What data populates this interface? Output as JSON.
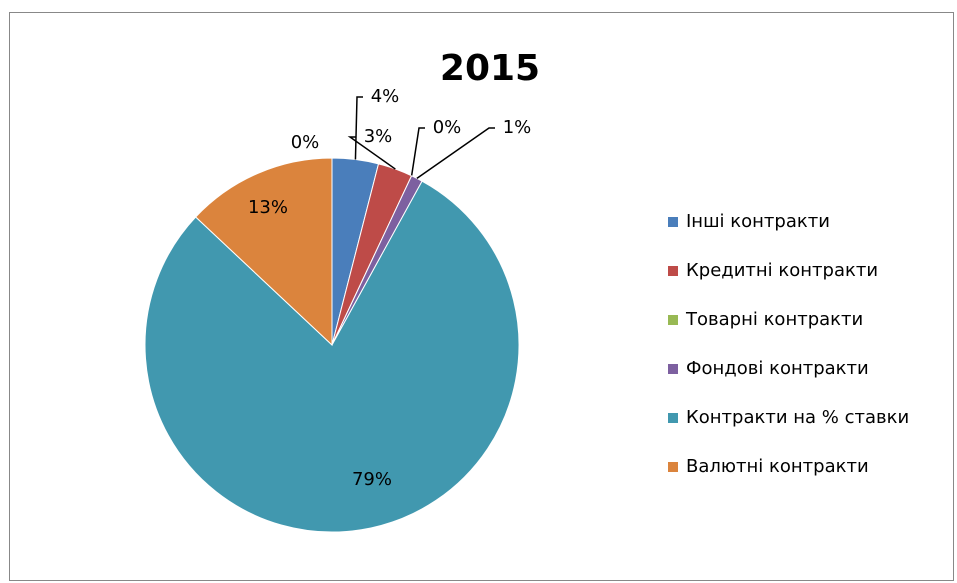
{
  "chart_data": {
    "type": "pie",
    "title": "2015",
    "categories": [
      "Інші контракти",
      "Кредитні контракти",
      "Товарні контракти",
      "Фондові контракти",
      "Контракти на % ставки",
      "Валютні контракти",
      null
    ],
    "values": [
      4,
      3,
      0,
      1,
      79,
      13,
      0
    ],
    "value_labels": [
      "4%",
      "3%",
      "0%",
      "1%",
      "79%",
      "13%",
      "0%"
    ],
    "colors": [
      "#4a7ebb",
      "#be4b48",
      "#98b954",
      "#7d60a0",
      "#4198af",
      "#db843d",
      "#a5a5a5"
    ],
    "legend": "right"
  }
}
